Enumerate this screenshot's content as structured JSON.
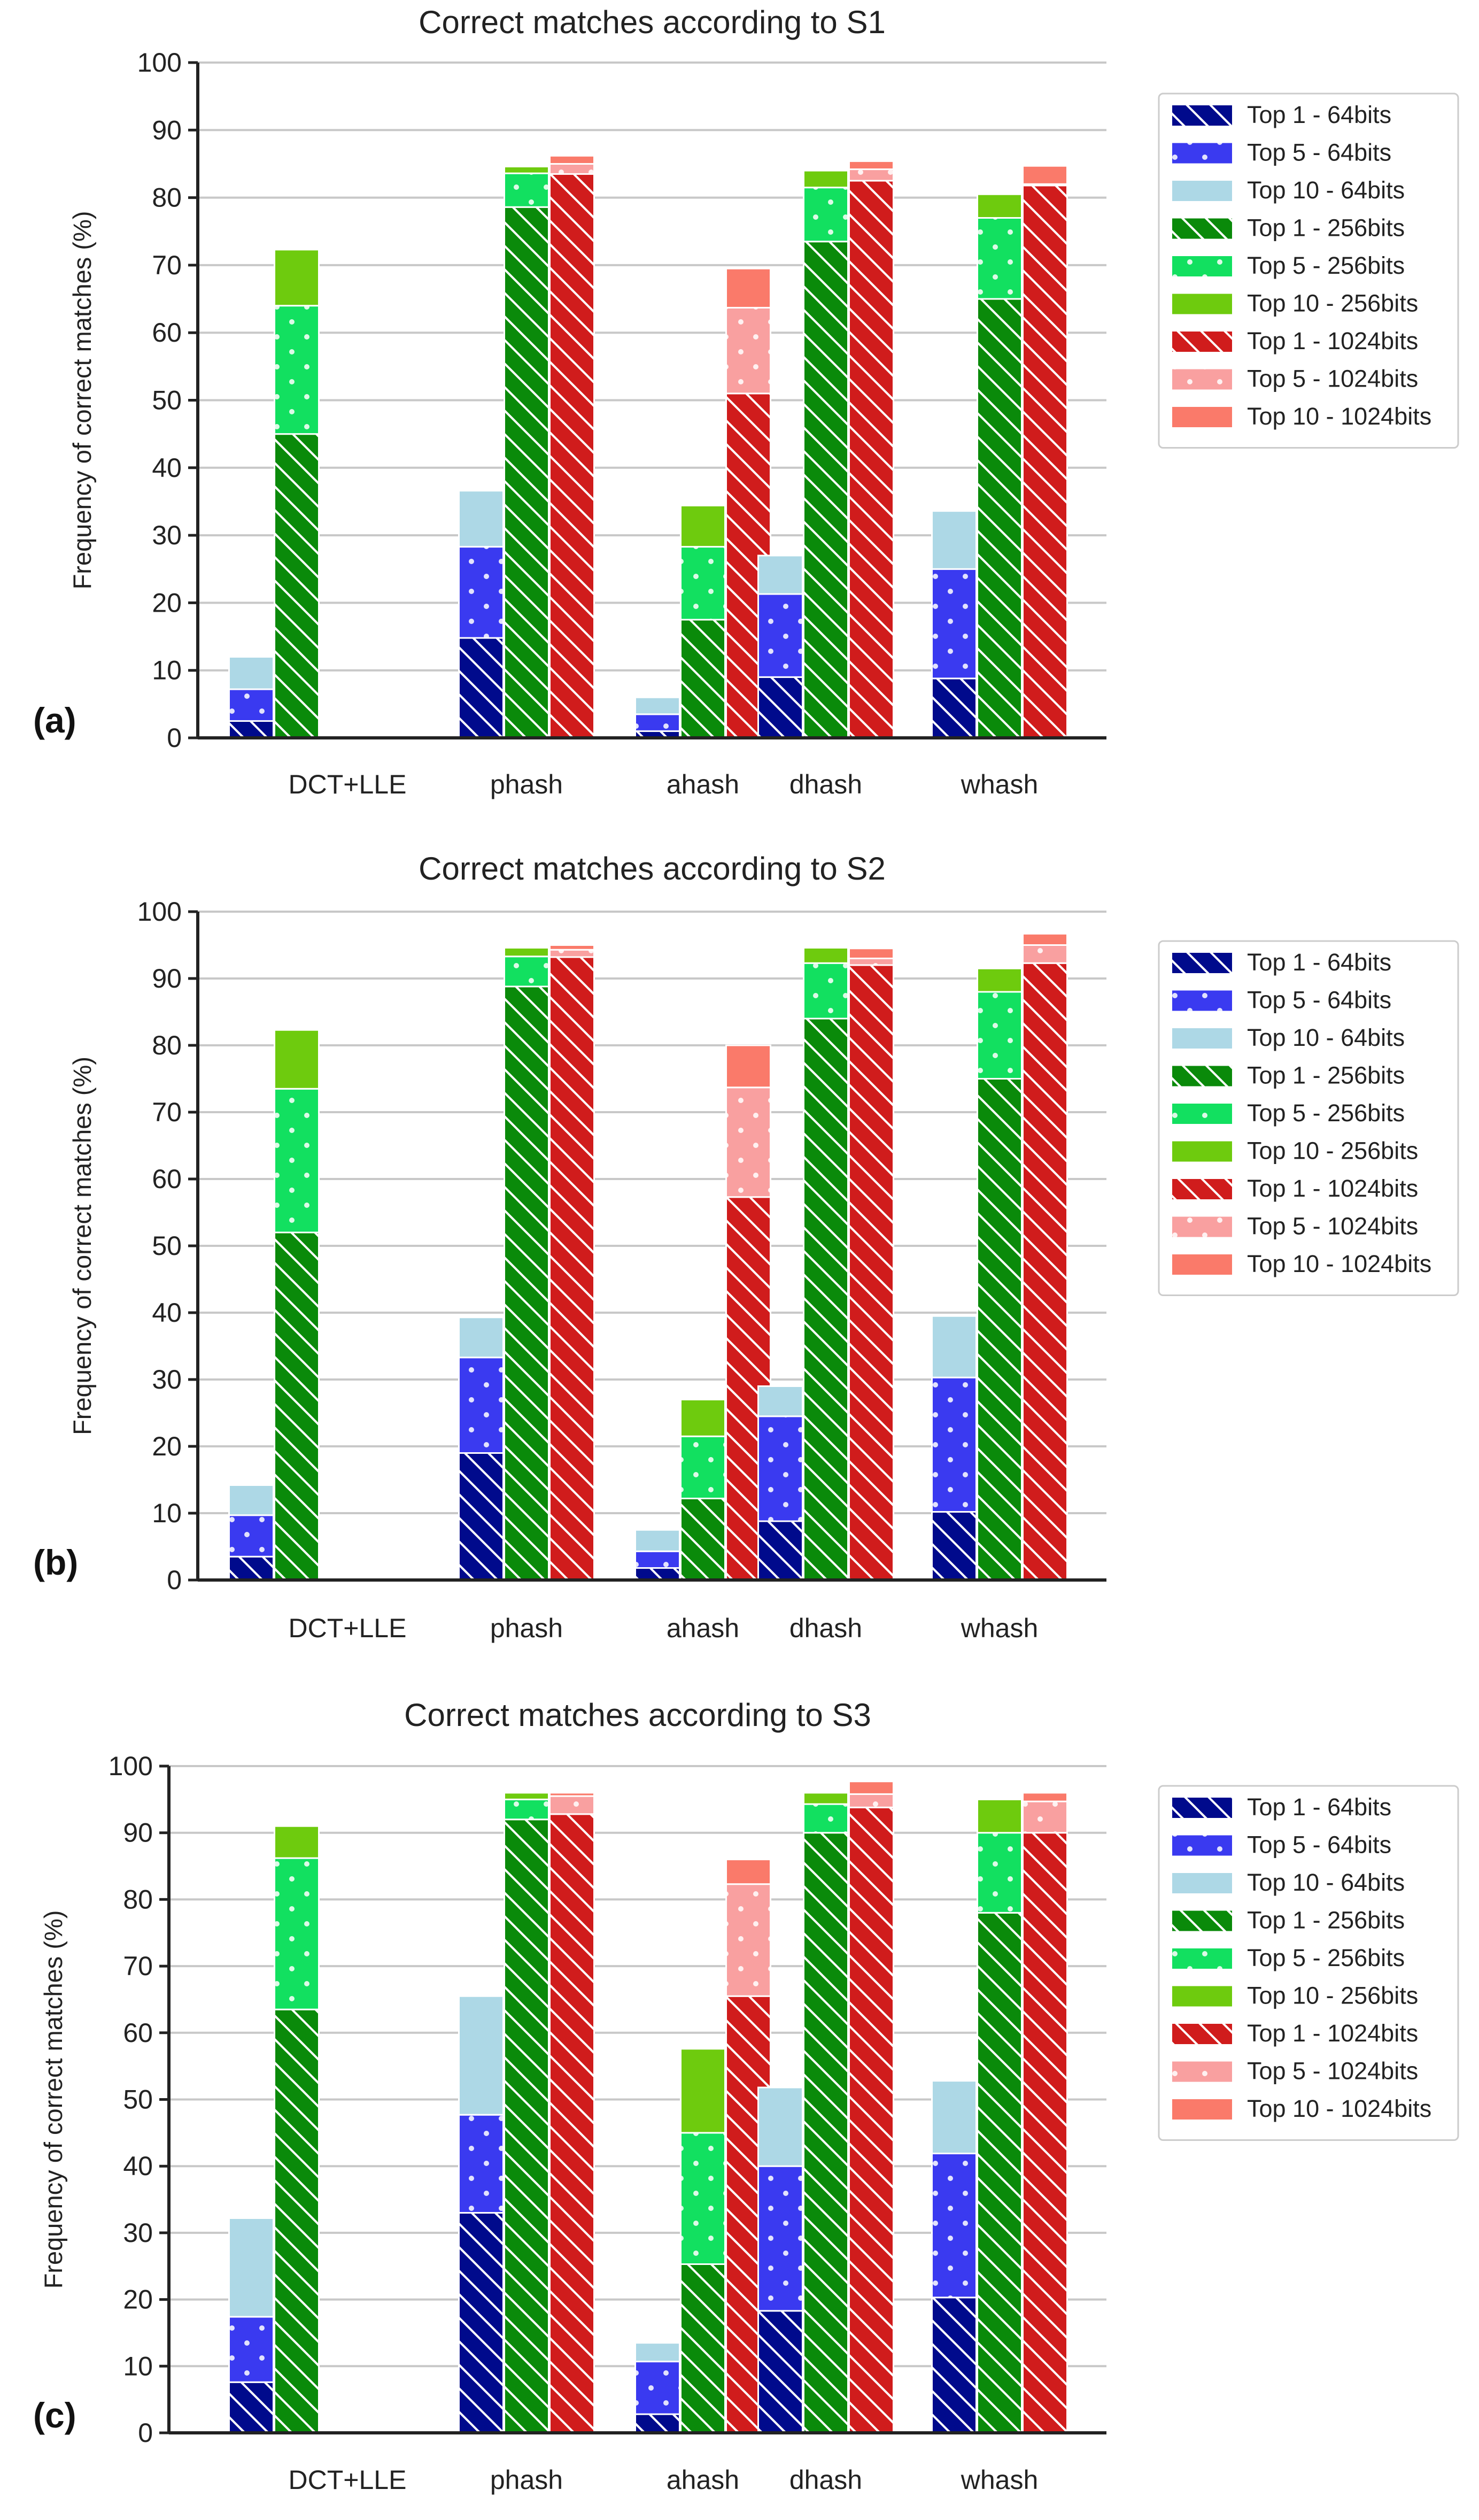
{
  "figure": {
    "colors": {
      "top1_64": "#000a8c",
      "top5_64": "#3a3af0",
      "top10_64": "#add8e6",
      "top1_256": "#0a8a0a",
      "top5_256": "#12e060",
      "top10_256": "#6ecb0e",
      "top1_1024": "#d01c1c",
      "top5_1024": "#f9a0a0",
      "top10_1024": "#fa7a6a",
      "grid": "#c8c8c8",
      "axis": "#222222"
    }
  },
  "chart_data": [
    {
      "type": "bar",
      "stacked": true,
      "panel_label": "(a)",
      "title": "Correct matches according to S1",
      "ylabel": "Frequency of correct matches (%)",
      "xlabel": "",
      "ylim": [
        0,
        100
      ],
      "yticks": [
        0,
        10,
        20,
        30,
        40,
        50,
        60,
        70,
        80,
        90,
        100
      ],
      "grid": true,
      "legend_position": "right",
      "categories": [
        "DCT+LLE",
        "phash",
        "ahash",
        "dhash",
        "whash"
      ],
      "legend": [
        "Top 1 - 64bits",
        "Top 5 - 64bits",
        "Top 10 - 64bits",
        "Top 1 - 256bits",
        "Top 5 - 256bits",
        "Top 10 - 256bits",
        "Top 1 - 1024bits",
        "Top 5 - 1024bits",
        "Top 10 - 1024bits"
      ],
      "series": [
        {
          "name": "64bits",
          "top1": [
            2.5,
            14.8,
            1.0,
            9.0,
            8.8
          ],
          "top5": [
            7.2,
            28.3,
            3.5,
            21.3,
            25.0
          ],
          "top10": [
            12.0,
            36.6,
            6.0,
            27.0,
            33.6
          ]
        },
        {
          "name": "256bits",
          "top1": [
            45.0,
            78.6,
            17.5,
            73.5,
            65.0
          ],
          "top5": [
            64.0,
            83.6,
            28.3,
            81.5,
            77.0
          ],
          "top10": [
            72.3,
            84.6,
            34.4,
            84.0,
            80.5
          ]
        },
        {
          "name": "1024bits",
          "top1": [
            null,
            83.5,
            51.0,
            82.5,
            81.8
          ],
          "top5": [
            null,
            85.0,
            63.7,
            84.2,
            82.0
          ],
          "top10": [
            null,
            86.2,
            69.5,
            85.4,
            84.7
          ]
        }
      ]
    },
    {
      "type": "bar",
      "stacked": true,
      "panel_label": "(b)",
      "title": "Correct matches according to S2",
      "ylabel": "Frequency of correct matches (%)",
      "xlabel": "",
      "ylim": [
        0,
        100
      ],
      "yticks": [
        0,
        10,
        20,
        30,
        40,
        50,
        60,
        70,
        80,
        90,
        100
      ],
      "grid": true,
      "legend_position": "right",
      "categories": [
        "DCT+LLE",
        "phash",
        "ahash",
        "dhash",
        "whash"
      ],
      "legend": [
        "Top 1 - 64bits",
        "Top 5 - 64bits",
        "Top 10 - 64bits",
        "Top 1 - 256bits",
        "Top 5 - 256bits",
        "Top 10 - 256bits",
        "Top 1 - 1024bits",
        "Top 5 - 1024bits",
        "Top 10 - 1024bits"
      ],
      "series": [
        {
          "name": "64bits",
          "top1": [
            3.5,
            19.0,
            1.8,
            8.8,
            10.2
          ],
          "top5": [
            9.7,
            33.3,
            4.3,
            24.5,
            30.3
          ],
          "top10": [
            14.2,
            39.3,
            7.5,
            29.0,
            39.5
          ]
        },
        {
          "name": "256bits",
          "top1": [
            52.0,
            88.8,
            12.2,
            84.0,
            75.0
          ],
          "top5": [
            73.5,
            93.3,
            21.5,
            92.3,
            88.0
          ],
          "top10": [
            82.3,
            94.6,
            27.0,
            94.6,
            91.5
          ]
        },
        {
          "name": "1024bits",
          "top1": [
            null,
            93.2,
            57.3,
            92.0,
            92.3
          ],
          "top5": [
            null,
            94.3,
            73.7,
            93.0,
            95.0
          ],
          "top10": [
            null,
            95.0,
            80.0,
            94.5,
            96.7
          ]
        }
      ]
    },
    {
      "type": "bar",
      "stacked": true,
      "panel_label": "(c)",
      "title": "Correct matches according to S3",
      "ylabel": "Frequency of correct matches (%)",
      "xlabel": "",
      "ylim": [
        0,
        100
      ],
      "yticks": [
        0,
        10,
        20,
        30,
        40,
        50,
        60,
        70,
        80,
        90,
        100
      ],
      "grid": true,
      "legend_position": "right",
      "categories": [
        "DCT+LLE",
        "phash",
        "ahash",
        "dhash",
        "whash"
      ],
      "legend": [
        "Top 1 - 64bits",
        "Top 5 - 64bits",
        "Top 10 - 64bits",
        "Top 1 - 256bits",
        "Top 5 - 256bits",
        "Top 10 - 256bits",
        "Top 1 - 1024bits",
        "Top 5 - 1024bits",
        "Top 10 - 1024bits"
      ],
      "series": [
        {
          "name": "64bits",
          "top1": [
            7.6,
            33.0,
            2.8,
            18.3,
            20.3
          ],
          "top5": [
            17.4,
            47.7,
            10.7,
            40.0,
            41.9
          ],
          "top10": [
            32.2,
            65.5,
            13.5,
            51.8,
            52.8
          ]
        },
        {
          "name": "256bits",
          "top1": [
            63.5,
            92.0,
            25.3,
            90.0,
            78.0
          ],
          "top5": [
            86.2,
            95.0,
            45.0,
            94.3,
            90.0
          ],
          "top10": [
            91.0,
            96.0,
            57.6,
            96.0,
            95.0
          ]
        },
        {
          "name": "1024bits",
          "top1": [
            null,
            92.8,
            65.5,
            93.8,
            90.0
          ],
          "top5": [
            null,
            95.5,
            82.3,
            95.8,
            94.7
          ],
          "top10": [
            null,
            96.0,
            86.0,
            97.7,
            96.0
          ]
        }
      ]
    }
  ]
}
